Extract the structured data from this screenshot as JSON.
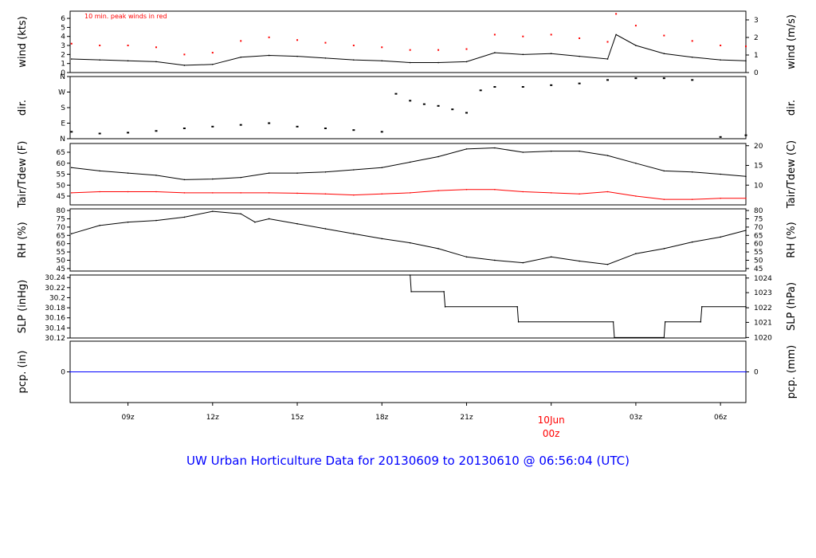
{
  "title": "UW Urban Horticulture Data for 20130609  to  20130610 @ 06:56:04  (UTC)",
  "colors": {
    "series": "#000000",
    "peak": "#ff0000",
    "tdew": "#ff0000",
    "precip": "#0000ff",
    "title": "#0000ff",
    "date_label": "#ff0000"
  },
  "x_axis": {
    "start_hour": 6.95,
    "end_hour": 30.9,
    "ticks": [
      {
        "hour": 9,
        "label": "09z"
      },
      {
        "hour": 12,
        "label": "12z"
      },
      {
        "hour": 15,
        "label": "15z"
      },
      {
        "hour": 18,
        "label": "18z"
      },
      {
        "hour": 21,
        "label": "21z"
      },
      {
        "hour": 24,
        "label": "00z",
        "label_top": "10Jun",
        "highlight": true
      },
      {
        "hour": 27,
        "label": "03z"
      },
      {
        "hour": 30,
        "label": "06z"
      }
    ]
  },
  "chart_data": [
    {
      "type": "line",
      "panel": "wind",
      "ylabel": "wind (kts)",
      "ylabel_right": "wind (m/s)",
      "ylim": [
        0,
        6.8
      ],
      "yticks": [
        0,
        1,
        2,
        3,
        4,
        5,
        6
      ],
      "yticks_right": [
        {
          "label": "0",
          "value": 0
        },
        {
          "label": "1",
          "value": 1.944
        },
        {
          "label": "2",
          "value": 3.888
        },
        {
          "label": "3",
          "value": 5.832
        }
      ],
      "annotation": "10 min. peak winds in red",
      "series": [
        {
          "style": "line",
          "color": "#000000",
          "x": [
            7,
            8,
            9,
            10,
            11,
            12,
            13,
            14,
            15,
            16,
            17,
            18,
            19,
            20,
            21,
            22,
            23,
            24,
            25,
            26,
            26.3,
            27,
            28,
            29,
            30,
            30.9
          ],
          "y": [
            1.5,
            1.4,
            1.3,
            1.2,
            0.8,
            0.9,
            1.7,
            1.9,
            1.8,
            1.6,
            1.4,
            1.3,
            1.1,
            1.1,
            1.2,
            2.2,
            2.0,
            2.1,
            1.8,
            1.5,
            4.2,
            3.0,
            2.1,
            1.7,
            1.4,
            1.3
          ]
        },
        {
          "style": "points",
          "color": "#ff0000",
          "x": [
            7,
            8,
            9,
            10,
            11,
            12,
            13,
            14,
            15,
            16,
            17,
            18,
            19,
            20,
            21,
            22,
            23,
            24,
            25,
            26,
            26.3,
            27,
            28,
            29,
            30,
            30.9
          ],
          "y": [
            3.2,
            3.0,
            3.0,
            2.8,
            2.0,
            2.2,
            3.5,
            3.9,
            3.6,
            3.3,
            3.0,
            2.8,
            2.5,
            2.5,
            2.6,
            4.2,
            4.0,
            4.2,
            3.8,
            3.4,
            6.5,
            5.2,
            4.1,
            3.5,
            3.0,
            2.9
          ]
        }
      ]
    },
    {
      "type": "scatter",
      "panel": "dir",
      "ylabel": "dir.",
      "ylabel_right": "dir.",
      "ylim": [
        0,
        360
      ],
      "ytick_labels": [
        {
          "label": "N",
          "value": 0
        },
        {
          "label": "E",
          "value": 90
        },
        {
          "label": "S",
          "value": 180
        },
        {
          "label": "W",
          "value": 270
        },
        {
          "label": "N",
          "value": 360
        }
      ],
      "ytick_labels_right": [
        {
          "label": "N",
          "value": 0
        },
        {
          "label": "E",
          "value": 90
        },
        {
          "label": "S",
          "value": 180
        },
        {
          "label": "W",
          "value": 270
        },
        {
          "label": "N",
          "value": 360
        }
      ],
      "series": [
        {
          "color": "#000000",
          "x": [
            7,
            8,
            9,
            10,
            11,
            12,
            13,
            14,
            15,
            16,
            17,
            18,
            18.5,
            19,
            19.5,
            20,
            20.5,
            21,
            21.5,
            22,
            23,
            24,
            25,
            26,
            27,
            28,
            29,
            30,
            30.9
          ],
          "y": [
            40,
            30,
            35,
            45,
            60,
            70,
            80,
            90,
            70,
            60,
            50,
            40,
            260,
            220,
            200,
            190,
            170,
            150,
            280,
            300,
            300,
            310,
            320,
            340,
            350,
            350,
            340,
            10,
            20
          ]
        }
      ]
    },
    {
      "type": "line",
      "panel": "temp",
      "ylabel": "Tair/Tdew (F)",
      "ylabel_right": "Tair/Tdew (C)",
      "ylim": [
        41,
        69
      ],
      "yticks": [
        45,
        50,
        55,
        60,
        65
      ],
      "yticks_right": [
        {
          "label": "10",
          "value": 50
        },
        {
          "label": "15",
          "value": 59
        },
        {
          "label": "20",
          "value": 68
        }
      ],
      "series": [
        {
          "color": "#000000",
          "x": [
            7,
            8,
            9,
            10,
            11,
            12,
            13,
            14,
            15,
            16,
            17,
            18,
            19,
            20,
            21,
            22,
            23,
            24,
            25,
            26,
            27,
            28,
            29,
            30,
            30.9
          ],
          "y": [
            58,
            56.5,
            55.5,
            54.5,
            52.5,
            52.8,
            53.5,
            55.5,
            55.5,
            56,
            57,
            58,
            60.5,
            63,
            66.5,
            67,
            65,
            65.5,
            65.5,
            63.5,
            60,
            56.5,
            56,
            55,
            54
          ]
        },
        {
          "color": "#ff0000",
          "x": [
            7,
            8,
            9,
            10,
            11,
            12,
            13,
            14,
            15,
            16,
            17,
            18,
            19,
            20,
            21,
            22,
            23,
            24,
            25,
            26,
            27,
            28,
            29,
            30,
            30.9
          ],
          "y": [
            46.5,
            47,
            47,
            47,
            46.5,
            46.5,
            46.5,
            46.5,
            46.3,
            46,
            45.5,
            46,
            46.5,
            47.5,
            48,
            48,
            47,
            46.5,
            46,
            47,
            45,
            43.5,
            43.5,
            44,
            44
          ]
        }
      ]
    },
    {
      "type": "line",
      "panel": "rh",
      "ylabel": "RH (%)",
      "ylabel_right": "RH (%)",
      "ylim": [
        43.5,
        81
      ],
      "yticks": [
        45,
        50,
        55,
        60,
        65,
        70,
        75,
        80
      ],
      "yticks_right": [
        {
          "label": "45",
          "value": 45
        },
        {
          "label": "50",
          "value": 50
        },
        {
          "label": "55",
          "value": 55
        },
        {
          "label": "60",
          "value": 60
        },
        {
          "label": "65",
          "value": 65
        },
        {
          "label": "70",
          "value": 70
        },
        {
          "label": "75",
          "value": 75
        },
        {
          "label": "80",
          "value": 80
        }
      ],
      "series": [
        {
          "color": "#000000",
          "x": [
            7,
            8,
            9,
            10,
            11,
            12,
            13,
            13.5,
            14,
            15,
            16,
            17,
            18,
            19,
            20,
            21,
            22,
            23,
            24,
            25,
            26,
            27,
            28,
            29,
            30,
            30.9
          ],
          "y": [
            66,
            71,
            73,
            74,
            76,
            79.5,
            78,
            73,
            75,
            72,
            69,
            66,
            63,
            60.5,
            57,
            52,
            50,
            48.5,
            52,
            49.5,
            47.5,
            54,
            57,
            61,
            64,
            68
          ]
        }
      ]
    },
    {
      "type": "line",
      "panel": "slp",
      "ylabel": "SLP (inHg)",
      "ylabel_right": "SLP (hPa)",
      "ylim": [
        30.12,
        30.245
      ],
      "yticks": [
        30.12,
        30.14,
        30.16,
        30.18,
        30.2,
        30.22,
        30.24
      ],
      "yticks_right": [
        {
          "label": "1020",
          "value": 30.121
        },
        {
          "label": "1021",
          "value": 30.151
        },
        {
          "label": "1022",
          "value": 30.18
        },
        {
          "label": "1023",
          "value": 30.21
        },
        {
          "label": "1024",
          "value": 30.239
        }
      ],
      "series": [
        {
          "color": "#000000",
          "step": true,
          "x": [
            6.95,
            19,
            19.04,
            20.2,
            20.24,
            22.8,
            22.84,
            26.2,
            26.24,
            28,
            28.04,
            29.3,
            29.34,
            30.9
          ],
          "y": [
            30.245,
            30.245,
            30.212,
            30.212,
            30.182,
            30.182,
            30.152,
            30.152,
            30.121,
            30.121,
            30.152,
            30.152,
            30.182,
            30.182
          ]
        }
      ]
    },
    {
      "type": "line",
      "panel": "pcp",
      "ylabel": "pcp. (in)",
      "ylabel_right": "pcp. (mm)",
      "ylim": [
        -1,
        1
      ],
      "yticks": [
        0
      ],
      "yticks_right": [
        {
          "label": "0",
          "value": 0
        }
      ],
      "series": [
        {
          "color": "#0000ff",
          "x": [
            6.95,
            30.9
          ],
          "y": [
            0,
            0
          ]
        }
      ]
    }
  ]
}
